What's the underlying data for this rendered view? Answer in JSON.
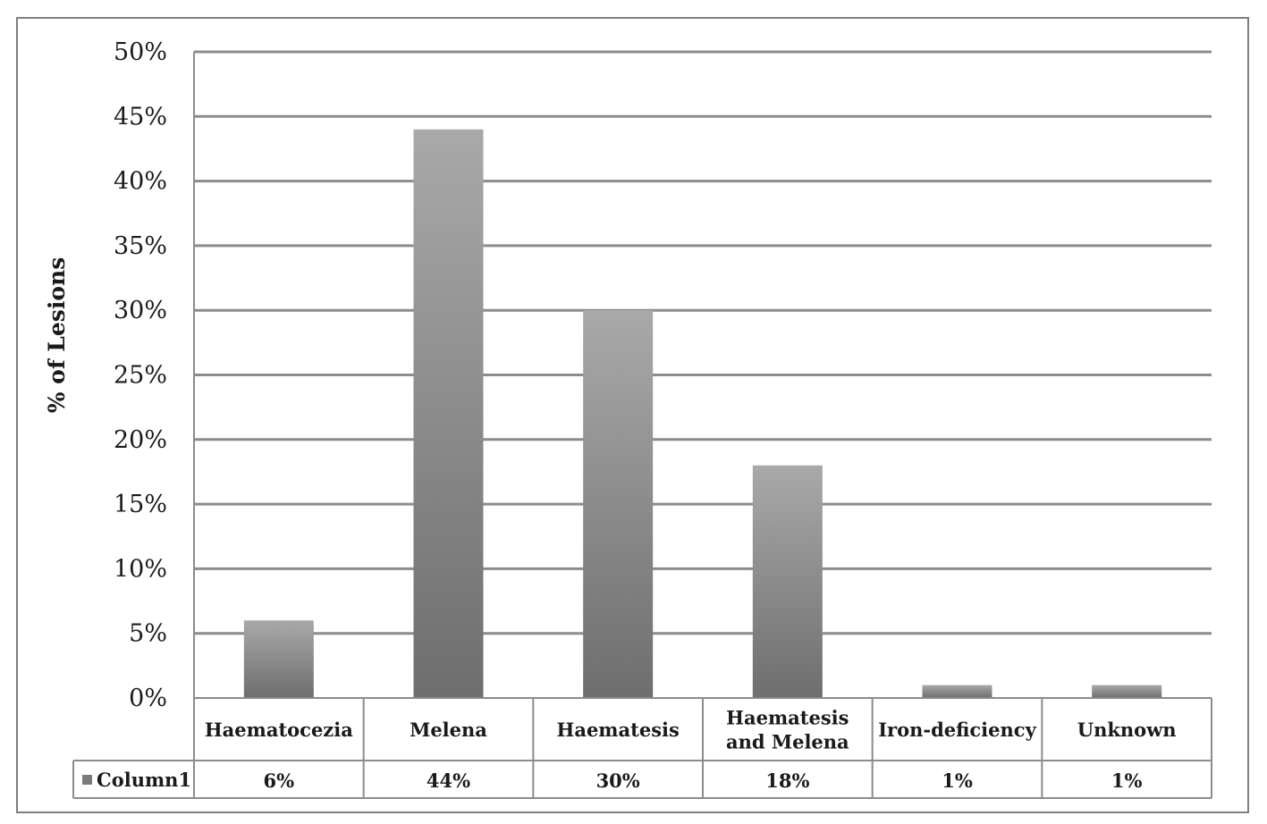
{
  "chart_data": {
    "type": "bar",
    "ylabel": "% of Lesions",
    "ylim": [
      0,
      50
    ],
    "yticks": [
      "0%",
      "5%",
      "10%",
      "15%",
      "20%",
      "25%",
      "30%",
      "35%",
      "40%",
      "45%",
      "50%"
    ],
    "grid": true,
    "categories": [
      [
        "Haematocezia"
      ],
      [
        "Melena"
      ],
      [
        "Haematesis"
      ],
      [
        "Haematesis",
        "and Melena"
      ],
      [
        "Iron-deficiency"
      ],
      [
        "Unknown"
      ]
    ],
    "series": [
      {
        "name": "Column1",
        "values": [
          6,
          44,
          30,
          18,
          1,
          1
        ],
        "labels": [
          "6%",
          "44%",
          "30%",
          "18%",
          "1%",
          "1%"
        ]
      }
    ],
    "legend": "data-table-left"
  }
}
